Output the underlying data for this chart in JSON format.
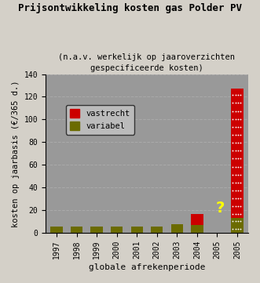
{
  "title": "Prijsontwikkeling kosten gas Polder PV",
  "subtitle": "(n.a.v. werkelijk op jaaroverzichten\ngespecificeerde kosten)",
  "xlabel": "globale afrekenperiode",
  "ylabel": "kosten op jaarbasis (€/365 d.)",
  "categories": [
    "1997",
    "1998",
    "1999",
    "2000",
    "2001",
    "2002",
    "2003",
    "2004",
    "2005",
    "2005"
  ],
  "variabel": [
    6,
    6,
    6,
    6,
    6,
    6,
    8,
    7,
    0,
    13
  ],
  "vastrecht": [
    0,
    0,
    0,
    0,
    0,
    0,
    0,
    10,
    0,
    114
  ],
  "var_color": "#6b6b00",
  "vas_color": "#cc0000",
  "background_color": "#999999",
  "fig_color": "#d4d0c8",
  "ylim": [
    0,
    140
  ],
  "yticks": [
    0,
    20,
    40,
    60,
    80,
    100,
    120,
    140
  ],
  "bar_width": 0.6,
  "question_mark_idx": 8,
  "dotted_bar_idx": 9,
  "legend_vastrecht": "vastrecht",
  "legend_variabel": "variabel"
}
